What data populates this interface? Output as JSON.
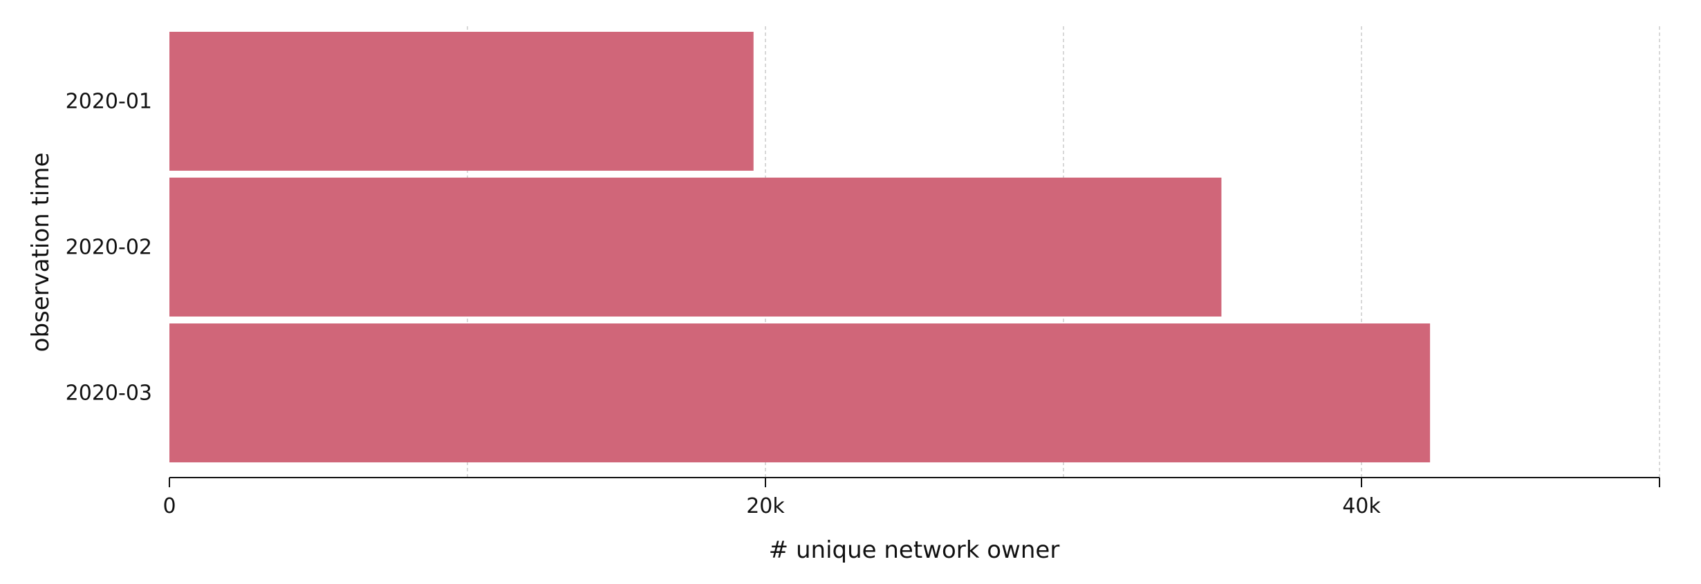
{
  "chart_data": {
    "type": "bar",
    "orientation": "horizontal",
    "categories": [
      "2020-01",
      "2020-02",
      "2020-03"
    ],
    "values": [
      19600,
      35300,
      42300
    ],
    "xlim": [
      0,
      50000
    ],
    "x_ticks": [
      {
        "value": 0,
        "label": "0"
      },
      {
        "value": 20000,
        "label": "20k"
      },
      {
        "value": 40000,
        "label": "40k"
      },
      {
        "value": 50000,
        "label": ""
      }
    ],
    "grid_lines": [
      10000,
      20000,
      30000,
      40000,
      50000
    ],
    "grid": true,
    "xlabel": "# unique network owner",
    "ylabel": "observation time",
    "title": "",
    "bar_color": "#d06679"
  }
}
